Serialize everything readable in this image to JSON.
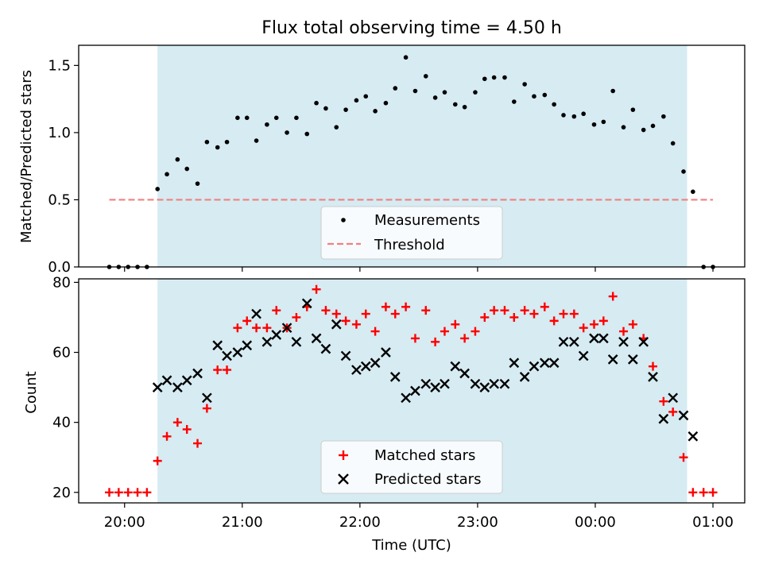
{
  "chart_data": [
    {
      "type": "scatter",
      "title": "Flux total observing time = 4.50 h",
      "ylabel": "Matched/Predicted stars",
      "xlabel": "",
      "x_unit": "hours after 20:00 UTC",
      "ylim": [
        0,
        1.65
      ],
      "yticks": [
        0.0,
        0.5,
        1.0,
        1.5
      ],
      "ytick_labels": [
        "0.0",
        "0.5",
        "1.0",
        "1.5"
      ],
      "observing_window": [
        0.28,
        4.78
      ],
      "series": [
        {
          "name": "Measurements",
          "color": "#000000",
          "marker": "dot",
          "x": [
            -0.13,
            -0.05,
            0.03,
            0.11,
            0.19,
            0.28,
            0.36,
            0.45,
            0.53,
            0.62,
            0.7,
            0.79,
            0.87,
            0.96,
            1.04,
            1.12,
            1.21,
            1.29,
            1.38,
            1.46,
            1.55,
            1.63,
            1.71,
            1.8,
            1.88,
            1.97,
            2.05,
            2.13,
            2.22,
            2.3,
            2.39,
            2.47,
            2.56,
            2.64,
            2.72,
            2.81,
            2.89,
            2.98,
            3.06,
            3.14,
            3.23,
            3.31,
            3.4,
            3.48,
            3.57,
            3.65,
            3.73,
            3.82,
            3.9,
            3.99,
            4.07,
            4.15,
            4.24,
            4.32,
            4.41,
            4.49,
            4.58,
            4.66,
            4.75,
            4.83,
            4.92,
            5.0
          ],
          "y": [
            0,
            0,
            0,
            0,
            0,
            0.58,
            0.69,
            0.8,
            0.73,
            0.62,
            0.93,
            0.89,
            0.93,
            1.11,
            1.11,
            0.94,
            1.06,
            1.11,
            1.0,
            1.11,
            0.99,
            1.22,
            1.18,
            1.04,
            1.17,
            1.24,
            1.27,
            1.16,
            1.22,
            1.33,
            1.56,
            1.31,
            1.42,
            1.26,
            1.3,
            1.21,
            1.19,
            1.3,
            1.4,
            1.41,
            1.41,
            1.23,
            1.36,
            1.27,
            1.28,
            1.21,
            1.13,
            1.12,
            1.14,
            1.06,
            1.08,
            1.31,
            1.04,
            1.17,
            1.02,
            1.05,
            1.12,
            0.92,
            0.71,
            0.56,
            0,
            0
          ]
        },
        {
          "name": "Threshold",
          "color": "#f08080",
          "style": "dashed",
          "x": [
            -0.13,
            5.0
          ],
          "y": [
            0.5,
            0.5
          ]
        }
      ],
      "legend": {
        "position": "bottom-center",
        "entries": [
          "Measurements",
          "Threshold"
        ]
      }
    },
    {
      "type": "scatter",
      "title": "",
      "xlabel": "Time (UTC)",
      "ylabel": "Count",
      "ylim": [
        17,
        81
      ],
      "yticks": [
        20,
        40,
        60,
        80
      ],
      "ytick_labels": [
        "20",
        "40",
        "60",
        "80"
      ],
      "xlim": [
        -0.39,
        5.27
      ],
      "xticks": [
        0,
        1,
        2,
        3,
        4,
        5
      ],
      "xtick_labels": [
        "20:00",
        "21:00",
        "22:00",
        "23:00",
        "00:00",
        "01:00"
      ],
      "observing_window": [
        0.28,
        4.78
      ],
      "series": [
        {
          "name": "Matched stars",
          "color": "#ff0000",
          "marker": "plus",
          "x": [
            -0.13,
            -0.05,
            0.03,
            0.11,
            0.19,
            0.28,
            0.36,
            0.45,
            0.53,
            0.62,
            0.7,
            0.79,
            0.87,
            0.96,
            1.04,
            1.12,
            1.21,
            1.29,
            1.38,
            1.46,
            1.55,
            1.63,
            1.71,
            1.8,
            1.88,
            1.97,
            2.05,
            2.13,
            2.22,
            2.3,
            2.39,
            2.47,
            2.56,
            2.64,
            2.72,
            2.81,
            2.89,
            2.98,
            3.06,
            3.14,
            3.23,
            3.31,
            3.4,
            3.48,
            3.57,
            3.65,
            3.73,
            3.82,
            3.9,
            3.99,
            4.07,
            4.15,
            4.24,
            4.32,
            4.41,
            4.49,
            4.58,
            4.66,
            4.75,
            4.83,
            4.92,
            5.0
          ],
          "y": [
            20,
            20,
            20,
            20,
            20,
            29,
            36,
            40,
            38,
            34,
            44,
            55,
            55,
            67,
            69,
            67,
            67,
            72,
            67,
            70,
            73,
            78,
            72,
            71,
            69,
            68,
            71,
            66,
            73,
            71,
            73,
            64,
            72,
            63,
            66,
            68,
            64,
            66,
            70,
            72,
            72,
            70,
            72,
            71,
            73,
            69,
            71,
            71,
            67,
            68,
            69,
            76,
            66,
            68,
            64,
            56,
            46,
            43,
            30,
            20,
            20,
            20
          ]
        },
        {
          "name": "Predicted stars",
          "color": "#000000",
          "marker": "x",
          "x": [
            0.28,
            0.36,
            0.45,
            0.53,
            0.62,
            0.7,
            0.79,
            0.87,
            0.96,
            1.04,
            1.12,
            1.21,
            1.29,
            1.38,
            1.46,
            1.55,
            1.63,
            1.71,
            1.8,
            1.88,
            1.97,
            2.05,
            2.13,
            2.22,
            2.3,
            2.39,
            2.47,
            2.56,
            2.64,
            2.72,
            2.81,
            2.89,
            2.98,
            3.06,
            3.14,
            3.23,
            3.31,
            3.4,
            3.48,
            3.57,
            3.65,
            3.73,
            3.82,
            3.9,
            3.99,
            4.07,
            4.15,
            4.24,
            4.32,
            4.41,
            4.49,
            4.58,
            4.66,
            4.75,
            4.83
          ],
          "y": [
            50,
            52,
            50,
            52,
            54,
            47,
            62,
            59,
            60,
            62,
            71,
            63,
            65,
            67,
            63,
            74,
            64,
            61,
            68,
            59,
            55,
            56,
            57,
            60,
            53,
            47,
            49,
            51,
            50,
            51,
            56,
            54,
            51,
            50,
            51,
            51,
            57,
            53,
            56,
            57,
            57,
            63,
            63,
            59,
            64,
            64,
            58,
            63,
            58,
            63,
            53,
            41,
            47,
            42,
            36
          ]
        }
      ],
      "legend": {
        "position": "bottom-center",
        "entries": [
          "Matched stars",
          "Predicted stars"
        ]
      }
    }
  ],
  "colors": {
    "observing_band": "#add8e6",
    "threshold": "#f08080",
    "matched": "#ff0000",
    "predicted": "#000000"
  }
}
